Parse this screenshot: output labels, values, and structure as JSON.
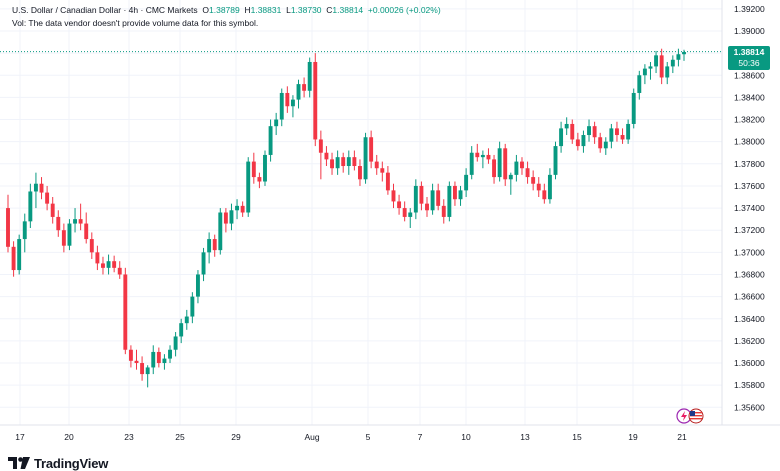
{
  "legend": {
    "symbol_line": "U.S. Dollar / Canadian Dollar · 4h · CMC Markets",
    "o_label": "O",
    "o_value": "1.38789",
    "h_label": "H",
    "h_value": "1.38831",
    "l_label": "L",
    "l_value": "1.38730",
    "c_label": "C",
    "c_value": "1.38814",
    "change": "+0.00026 (+0.02%)",
    "volume_note": "Vol: The data vendor doesn't provide volume data for this symbol."
  },
  "price_tag": {
    "price": "1.38814",
    "countdown": "50:36"
  },
  "branding": {
    "logo_text": "TradingView"
  },
  "icons": {
    "logo": "tradingview-logo-icon",
    "event_a": "lightning-event-icon",
    "event_b": "us-flag-event-icon"
  },
  "colors": {
    "up": "#089981",
    "down": "#f23645",
    "grid": "#f0f3fa",
    "axis_text": "#131722",
    "price_line": "#089981"
  },
  "chart_data": {
    "type": "candlestick",
    "symbol": "USDCAD",
    "interval": "4h",
    "y_axis": {
      "ticks": [
        "1.39200",
        "1.39000",
        "1.38800",
        "1.38600",
        "1.38400",
        "1.38200",
        "1.38000",
        "1.37800",
        "1.37600",
        "1.37400",
        "1.37200",
        "1.37000",
        "1.36800",
        "1.36600",
        "1.36400",
        "1.36200",
        "1.36000",
        "1.35800",
        "1.35600"
      ],
      "ylim": [
        1.3544,
        1.3928
      ]
    },
    "x_axis": {
      "ticks": [
        "17",
        "20",
        "23",
        "25",
        "29",
        "Aug",
        "5",
        "7",
        "10",
        "13",
        "15",
        "19",
        "21"
      ]
    },
    "last_price": 1.38814,
    "candles": [
      [
        1.374,
        1.3752,
        1.37,
        1.3705
      ],
      [
        1.3705,
        1.371,
        1.3678,
        1.3684
      ],
      [
        1.3684,
        1.3716,
        1.368,
        1.3712
      ],
      [
        1.3712,
        1.3735,
        1.37,
        1.3728
      ],
      [
        1.3728,
        1.3762,
        1.3722,
        1.3755
      ],
      [
        1.3755,
        1.3772,
        1.374,
        1.3762
      ],
      [
        1.3762,
        1.3768,
        1.3748,
        1.3754
      ],
      [
        1.3754,
        1.376,
        1.3738,
        1.3744
      ],
      [
        1.3744,
        1.375,
        1.3726,
        1.3732
      ],
      [
        1.3732,
        1.3738,
        1.3714,
        1.372
      ],
      [
        1.372,
        1.3726,
        1.37,
        1.3706
      ],
      [
        1.3706,
        1.373,
        1.3702,
        1.3726
      ],
      [
        1.3726,
        1.374,
        1.3718,
        1.373
      ],
      [
        1.373,
        1.3744,
        1.372,
        1.3726
      ],
      [
        1.3726,
        1.3736,
        1.3708,
        1.3712
      ],
      [
        1.3712,
        1.3718,
        1.3694,
        1.37
      ],
      [
        1.37,
        1.3706,
        1.3684,
        1.369
      ],
      [
        1.369,
        1.3696,
        1.368,
        1.3686
      ],
      [
        1.3686,
        1.3698,
        1.368,
        1.3692
      ],
      [
        1.3692,
        1.3697,
        1.3682,
        1.3686
      ],
      [
        1.3686,
        1.3692,
        1.3676,
        1.368
      ],
      [
        1.368,
        1.3686,
        1.3608,
        1.3612
      ],
      [
        1.3612,
        1.3616,
        1.3596,
        1.3602
      ],
      [
        1.3602,
        1.3612,
        1.3594,
        1.36
      ],
      [
        1.36,
        1.3606,
        1.3584,
        1.359
      ],
      [
        1.359,
        1.3598,
        1.3578,
        1.3596
      ],
      [
        1.3596,
        1.3616,
        1.359,
        1.361
      ],
      [
        1.361,
        1.3614,
        1.3596,
        1.36
      ],
      [
        1.36,
        1.3608,
        1.3594,
        1.3604
      ],
      [
        1.3604,
        1.3616,
        1.36,
        1.3612
      ],
      [
        1.3612,
        1.3628,
        1.3606,
        1.3624
      ],
      [
        1.3624,
        1.364,
        1.3618,
        1.3636
      ],
      [
        1.3636,
        1.3648,
        1.363,
        1.3642
      ],
      [
        1.3642,
        1.3664,
        1.3636,
        1.366
      ],
      [
        1.366,
        1.3684,
        1.3654,
        1.368
      ],
      [
        1.368,
        1.3704,
        1.3674,
        1.37
      ],
      [
        1.37,
        1.3718,
        1.369,
        1.3712
      ],
      [
        1.3712,
        1.3716,
        1.3696,
        1.3702
      ],
      [
        1.3702,
        1.374,
        1.3698,
        1.3736
      ],
      [
        1.3736,
        1.374,
        1.3718,
        1.3726
      ],
      [
        1.3726,
        1.3744,
        1.372,
        1.3738
      ],
      [
        1.3738,
        1.3748,
        1.373,
        1.3742
      ],
      [
        1.3742,
        1.3746,
        1.3732,
        1.3736
      ],
      [
        1.3736,
        1.3786,
        1.3732,
        1.3782
      ],
      [
        1.3782,
        1.379,
        1.3762,
        1.3768
      ],
      [
        1.3768,
        1.3772,
        1.3758,
        1.3764
      ],
      [
        1.3764,
        1.3792,
        1.376,
        1.3788
      ],
      [
        1.3788,
        1.382,
        1.3782,
        1.3814
      ],
      [
        1.3814,
        1.3826,
        1.3806,
        1.382
      ],
      [
        1.382,
        1.3848,
        1.3814,
        1.3844
      ],
      [
        1.3844,
        1.385,
        1.3826,
        1.3832
      ],
      [
        1.3832,
        1.3842,
        1.3822,
        1.3838
      ],
      [
        1.3838,
        1.3856,
        1.383,
        1.3852
      ],
      [
        1.3852,
        1.3858,
        1.384,
        1.3846
      ],
      [
        1.3846,
        1.3876,
        1.384,
        1.3872
      ],
      [
        1.3872,
        1.388,
        1.3796,
        1.3802
      ],
      [
        1.3802,
        1.381,
        1.3766,
        1.379
      ],
      [
        1.379,
        1.3796,
        1.3778,
        1.3784
      ],
      [
        1.3784,
        1.379,
        1.377,
        1.3776
      ],
      [
        1.3776,
        1.3792,
        1.377,
        1.3786
      ],
      [
        1.3786,
        1.379,
        1.3772,
        1.3778
      ],
      [
        1.3778,
        1.3792,
        1.377,
        1.3786
      ],
      [
        1.3786,
        1.3792,
        1.3774,
        1.3778
      ],
      [
        1.3778,
        1.3784,
        1.376,
        1.3766
      ],
      [
        1.3766,
        1.3808,
        1.3762,
        1.3804
      ],
      [
        1.3804,
        1.381,
        1.3776,
        1.3782
      ],
      [
        1.3782,
        1.3788,
        1.377,
        1.3776
      ],
      [
        1.3776,
        1.3782,
        1.3764,
        1.3772
      ],
      [
        1.3772,
        1.3778,
        1.3752,
        1.3756
      ],
      [
        1.3756,
        1.3762,
        1.374,
        1.3746
      ],
      [
        1.3746,
        1.3752,
        1.3734,
        1.374
      ],
      [
        1.374,
        1.3746,
        1.3728,
        1.3732
      ],
      [
        1.3732,
        1.374,
        1.3722,
        1.3736
      ],
      [
        1.3736,
        1.3766,
        1.373,
        1.376
      ],
      [
        1.376,
        1.3764,
        1.3738,
        1.3744
      ],
      [
        1.3744,
        1.375,
        1.3732,
        1.3738
      ],
      [
        1.3738,
        1.3762,
        1.3734,
        1.3756
      ],
      [
        1.3756,
        1.3762,
        1.3738,
        1.3742
      ],
      [
        1.3742,
        1.3748,
        1.3726,
        1.3732
      ],
      [
        1.3732,
        1.3764,
        1.3728,
        1.376
      ],
      [
        1.376,
        1.3764,
        1.3742,
        1.3748
      ],
      [
        1.3748,
        1.376,
        1.3742,
        1.3756
      ],
      [
        1.3756,
        1.3776,
        1.375,
        1.377
      ],
      [
        1.377,
        1.3796,
        1.3766,
        1.379
      ],
      [
        1.379,
        1.3798,
        1.3782,
        1.3786
      ],
      [
        1.3786,
        1.3792,
        1.3776,
        1.3788
      ],
      [
        1.3788,
        1.3794,
        1.378,
        1.3784
      ],
      [
        1.3784,
        1.3788,
        1.3762,
        1.3768
      ],
      [
        1.3768,
        1.38,
        1.3764,
        1.3794
      ],
      [
        1.3794,
        1.3798,
        1.376,
        1.3766
      ],
      [
        1.3766,
        1.3772,
        1.3752,
        1.377
      ],
      [
        1.377,
        1.3788,
        1.3764,
        1.3782
      ],
      [
        1.3782,
        1.3786,
        1.377,
        1.3776
      ],
      [
        1.3776,
        1.3782,
        1.3762,
        1.3768
      ],
      [
        1.3768,
        1.3774,
        1.3756,
        1.3762
      ],
      [
        1.3762,
        1.3768,
        1.375,
        1.3756
      ],
      [
        1.3756,
        1.3762,
        1.3744,
        1.3748
      ],
      [
        1.3748,
        1.3776,
        1.3744,
        1.377
      ],
      [
        1.377,
        1.38,
        1.3766,
        1.3796
      ],
      [
        1.3796,
        1.3818,
        1.379,
        1.3812
      ],
      [
        1.3812,
        1.3822,
        1.3806,
        1.3816
      ],
      [
        1.3816,
        1.382,
        1.3798,
        1.3802
      ],
      [
        1.3802,
        1.3808,
        1.3792,
        1.3796
      ],
      [
        1.3796,
        1.381,
        1.379,
        1.3806
      ],
      [
        1.3806,
        1.382,
        1.38,
        1.3814
      ],
      [
        1.3814,
        1.3818,
        1.3798,
        1.3804
      ],
      [
        1.3804,
        1.3808,
        1.379,
        1.3794
      ],
      [
        1.3794,
        1.3804,
        1.3788,
        1.38
      ],
      [
        1.38,
        1.3816,
        1.3794,
        1.3812
      ],
      [
        1.3812,
        1.3818,
        1.38,
        1.3806
      ],
      [
        1.3806,
        1.3812,
        1.3798,
        1.3802
      ],
      [
        1.3802,
        1.382,
        1.3798,
        1.3816
      ],
      [
        1.3816,
        1.3848,
        1.3812,
        1.3844
      ],
      [
        1.3844,
        1.3864,
        1.3838,
        1.386
      ],
      [
        1.386,
        1.387,
        1.3852,
        1.3866
      ],
      [
        1.3866,
        1.3872,
        1.3856,
        1.3868
      ],
      [
        1.3868,
        1.3882,
        1.3862,
        1.3878
      ],
      [
        1.3878,
        1.3884,
        1.3852,
        1.3858
      ],
      [
        1.3858,
        1.3872,
        1.3852,
        1.3868
      ],
      [
        1.3868,
        1.3878,
        1.3862,
        1.3874
      ],
      [
        1.3874,
        1.3884,
        1.3868,
        1.3879
      ],
      [
        1.3879,
        1.3883,
        1.3873,
        1.3881
      ]
    ]
  }
}
